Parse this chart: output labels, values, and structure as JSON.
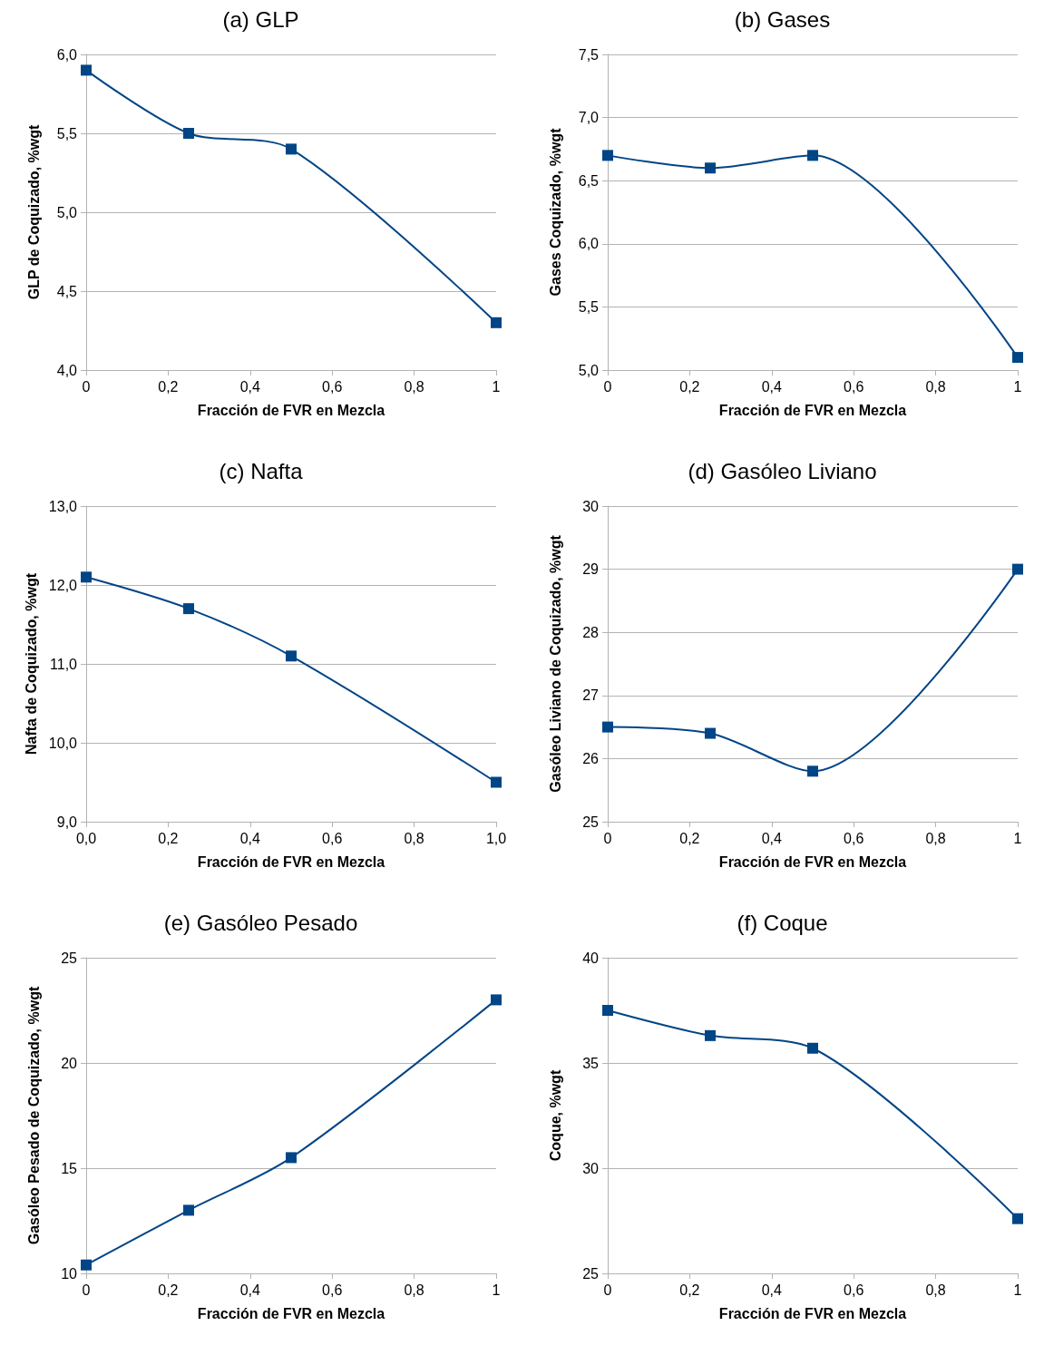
{
  "chart_data": [
    {
      "type": "line",
      "title": "(a) GLP",
      "xlabel": "Fracción de FVR en Mezcla",
      "ylabel": "GLP de Coquizado, %wgt",
      "x": [
        0,
        0.25,
        0.5,
        1
      ],
      "series": [
        {
          "color": "#004586",
          "values": [
            5.9,
            5.5,
            5.4,
            4.3
          ]
        }
      ],
      "xlim": [
        0,
        1
      ],
      "xticks": [
        {
          "value": 0,
          "label": "0"
        },
        {
          "value": 0.2,
          "label": "0,2"
        },
        {
          "value": 0.4,
          "label": "0,4"
        },
        {
          "value": 0.6,
          "label": "0,6"
        },
        {
          "value": 0.8,
          "label": "0,8"
        },
        {
          "value": 1,
          "label": "1"
        }
      ],
      "ylim": [
        4,
        6
      ],
      "yticks": [
        {
          "value": 4,
          "label": "4,0"
        },
        {
          "value": 4.5,
          "label": "4,5"
        },
        {
          "value": 5,
          "label": "5,0"
        },
        {
          "value": 5.5,
          "label": "5,5"
        },
        {
          "value": 6,
          "label": "6,0"
        }
      ],
      "grid": "y",
      "marker": "square"
    },
    {
      "type": "line",
      "title": "(b) Gases",
      "xlabel": "Fracción de FVR en Mezcla",
      "ylabel": "Gases Coquizado, %wgt",
      "x": [
        0,
        0.25,
        0.5,
        1
      ],
      "series": [
        {
          "color": "#004586",
          "values": [
            6.7,
            6.6,
            6.7,
            5.1
          ]
        }
      ],
      "xlim": [
        0,
        1
      ],
      "xticks": [
        {
          "value": 0,
          "label": "0"
        },
        {
          "value": 0.2,
          "label": "0,2"
        },
        {
          "value": 0.4,
          "label": "0,4"
        },
        {
          "value": 0.6,
          "label": "0,6"
        },
        {
          "value": 0.8,
          "label": "0,8"
        },
        {
          "value": 1,
          "label": "1"
        }
      ],
      "ylim": [
        5,
        7.5
      ],
      "yticks": [
        {
          "value": 5,
          "label": "5,0"
        },
        {
          "value": 5.5,
          "label": "5,5"
        },
        {
          "value": 6,
          "label": "6,0"
        },
        {
          "value": 6.5,
          "label": "6,5"
        },
        {
          "value": 7,
          "label": "7,0"
        },
        {
          "value": 7.5,
          "label": "7,5"
        }
      ],
      "grid": "y",
      "marker": "square"
    },
    {
      "type": "line",
      "title": "(c) Nafta",
      "xlabel": "Fracción de FVR en Mezcla",
      "ylabel": "Nafta de Coquizado, %wgt",
      "x": [
        0,
        0.25,
        0.5,
        1
      ],
      "series": [
        {
          "color": "#004586",
          "values": [
            12.1,
            11.7,
            11.1,
            9.5
          ]
        }
      ],
      "xlim": [
        0,
        1
      ],
      "xticks": [
        {
          "value": 0,
          "label": "0,0"
        },
        {
          "value": 0.2,
          "label": "0,2"
        },
        {
          "value": 0.4,
          "label": "0,4"
        },
        {
          "value": 0.6,
          "label": "0,6"
        },
        {
          "value": 0.8,
          "label": "0,8"
        },
        {
          "value": 1,
          "label": "1,0"
        }
      ],
      "ylim": [
        9,
        13
      ],
      "yticks": [
        {
          "value": 9,
          "label": "9,0"
        },
        {
          "value": 10,
          "label": "10,0"
        },
        {
          "value": 11,
          "label": "11,0"
        },
        {
          "value": 12,
          "label": "12,0"
        },
        {
          "value": 13,
          "label": "13,0"
        }
      ],
      "grid": "y",
      "marker": "square"
    },
    {
      "type": "line",
      "title": "(d) Gasóleo Liviano",
      "xlabel": "Fracción de FVR en Mezcla",
      "ylabel": "Gasóleo Liviano de Coquizado, %wgt",
      "x": [
        0,
        0.25,
        0.5,
        1
      ],
      "series": [
        {
          "color": "#004586",
          "values": [
            26.5,
            26.4,
            25.8,
            29
          ]
        }
      ],
      "xlim": [
        0,
        1
      ],
      "xticks": [
        {
          "value": 0,
          "label": "0"
        },
        {
          "value": 0.2,
          "label": "0,2"
        },
        {
          "value": 0.4,
          "label": "0,4"
        },
        {
          "value": 0.6,
          "label": "0,6"
        },
        {
          "value": 0.8,
          "label": "0,8"
        },
        {
          "value": 1,
          "label": "1"
        }
      ],
      "ylim": [
        25,
        30
      ],
      "yticks": [
        25,
        26,
        27,
        28,
        29,
        30
      ],
      "grid": "y",
      "marker": "square"
    },
    {
      "type": "line",
      "title": "(e) Gasóleo Pesado",
      "xlabel": "Fracción de FVR en Mezcla",
      "ylabel": "Gasóleo Pesado de Coquizado, %wgt",
      "x": [
        0,
        0.25,
        0.5,
        1
      ],
      "series": [
        {
          "color": "#004586",
          "values": [
            10.4,
            13,
            15.5,
            23
          ]
        }
      ],
      "xlim": [
        0,
        1
      ],
      "xticks": [
        {
          "value": 0,
          "label": "0"
        },
        {
          "value": 0.2,
          "label": "0,2"
        },
        {
          "value": 0.4,
          "label": "0,4"
        },
        {
          "value": 0.6,
          "label": "0,6"
        },
        {
          "value": 0.8,
          "label": "0,8"
        },
        {
          "value": 1,
          "label": "1"
        }
      ],
      "ylim": [
        10,
        25
      ],
      "yticks": [
        10,
        15,
        20,
        25
      ],
      "grid": "y",
      "marker": "square"
    },
    {
      "type": "line",
      "title": "(f) Coque",
      "xlabel": "Fracción de FVR en Mezcla",
      "ylabel": "Coque, %wgt",
      "x": [
        0,
        0.25,
        0.5,
        1
      ],
      "series": [
        {
          "color": "#004586",
          "values": [
            37.5,
            36.3,
            35.7,
            27.6
          ]
        }
      ],
      "xlim": [
        0,
        1
      ],
      "xticks": [
        {
          "value": 0,
          "label": "0"
        },
        {
          "value": 0.2,
          "label": "0,2"
        },
        {
          "value": 0.4,
          "label": "0,4"
        },
        {
          "value": 0.6,
          "label": "0,6"
        },
        {
          "value": 0.8,
          "label": "0,8"
        },
        {
          "value": 1,
          "label": "1"
        }
      ],
      "ylim": [
        25,
        40
      ],
      "yticks": [
        25,
        30,
        35,
        40
      ],
      "grid": "y",
      "marker": "square"
    }
  ]
}
